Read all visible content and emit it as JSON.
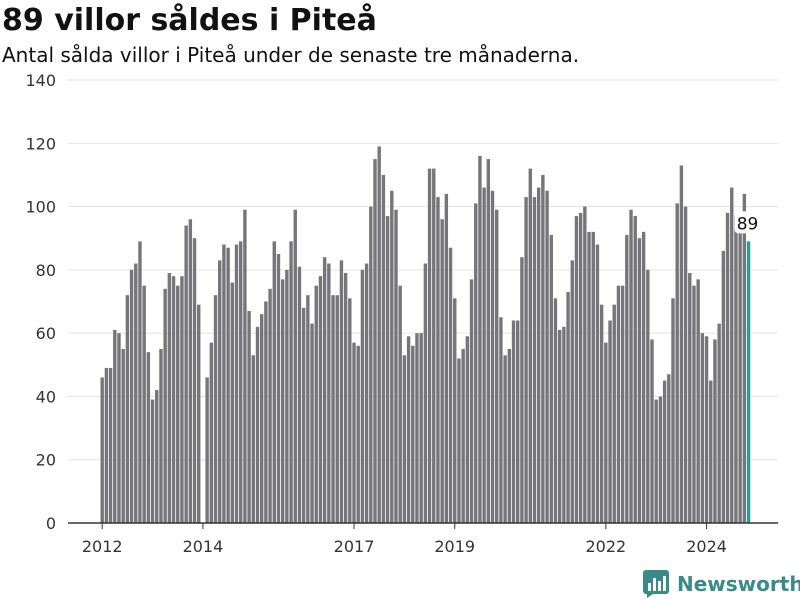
{
  "title": "89 villor såldes i Piteå",
  "subtitle": "Antal sålda villor i Piteå under de senaste tre månaderna.",
  "brand": {
    "name": "Newsworthy",
    "color": "#3a8b88"
  },
  "chart_data": {
    "type": "bar",
    "ylim": [
      0,
      140
    ],
    "yticks": [
      0,
      20,
      40,
      60,
      80,
      100,
      120,
      140
    ],
    "xtick_labels": [
      "2012",
      "2014",
      "2017",
      "2019",
      "2022",
      "2024"
    ],
    "bar_color": "#76757a",
    "highlight_color": "#2a9d8f",
    "highlight_label": "89",
    "values": [
      46,
      49,
      49,
      61,
      60,
      55,
      72,
      80,
      82,
      89,
      75,
      54,
      39,
      42,
      55,
      74,
      79,
      78,
      75,
      78,
      94,
      96,
      90,
      69,
      0,
      46,
      57,
      72,
      83,
      88,
      87,
      76,
      88,
      89,
      99,
      67,
      53,
      62,
      66,
      70,
      74,
      89,
      85,
      77,
      80,
      89,
      99,
      81,
      68,
      72,
      63,
      75,
      78,
      84,
      82,
      72,
      72,
      83,
      79,
      71,
      57,
      56,
      80,
      82,
      100,
      115,
      119,
      110,
      97,
      105,
      99,
      75,
      53,
      59,
      56,
      60,
      60,
      82,
      112,
      112,
      103,
      96,
      104,
      87,
      71,
      52,
      55,
      59,
      77,
      101,
      116,
      106,
      115,
      105,
      99,
      65,
      53,
      55,
      64,
      64,
      84,
      103,
      112,
      103,
      106,
      110,
      105,
      91,
      71,
      61,
      62,
      73,
      83,
      97,
      98,
      100,
      92,
      92,
      88,
      69,
      57,
      64,
      69,
      75,
      75,
      91,
      99,
      97,
      90,
      92,
      80,
      58,
      39,
      40,
      45,
      47,
      71,
      101,
      113,
      100,
      79,
      75,
      77,
      60,
      59,
      45,
      58,
      63,
      86,
      98,
      106,
      97,
      93,
      104,
      89
    ]
  }
}
